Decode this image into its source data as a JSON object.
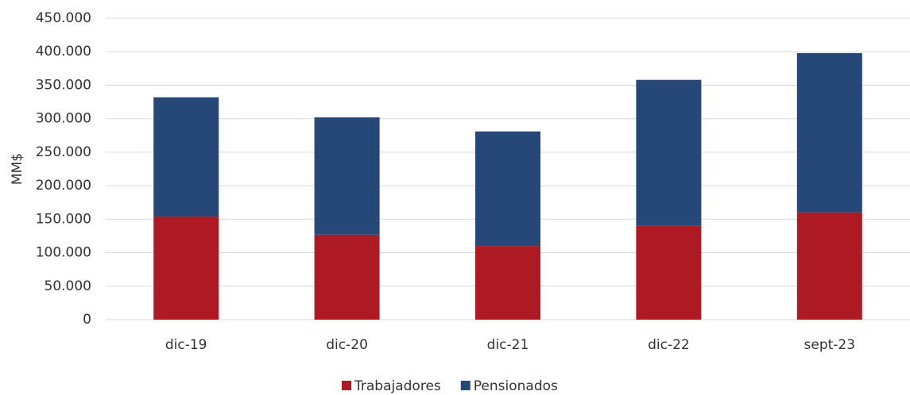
{
  "chart_data": {
    "type": "stacked-bar",
    "y_label": "MM$",
    "categories": [
      "dic-19",
      "dic-20",
      "dic-21",
      "dic-22",
      "sept-23"
    ],
    "series": [
      {
        "name": "Trabajadores",
        "color": "#ae1a24",
        "values": [
          154000,
          127000,
          110000,
          140000,
          160000
        ]
      },
      {
        "name": "Pensionados",
        "color": "#264878",
        "values": [
          178000,
          175000,
          171000,
          218000,
          238000
        ]
      }
    ],
    "ylim": [
      0,
      450000
    ],
    "yticks": [
      0,
      {
        "value": 50000,
        "label": "50.000"
      },
      {
        "value": 100000,
        "label": "100.000"
      },
      {
        "value": 150000,
        "label": "150.000"
      },
      {
        "value": 200000,
        "label": "200.000"
      },
      {
        "value": 250000,
        "label": "250.000"
      },
      {
        "value": 300000,
        "label": "300.000"
      },
      {
        "value": 350000,
        "label": "350.000"
      },
      {
        "value": 400000,
        "label": "400.000"
      },
      {
        "value": 450000,
        "label": "450.000"
      }
    ],
    "grid": true,
    "legend": "bottom"
  }
}
